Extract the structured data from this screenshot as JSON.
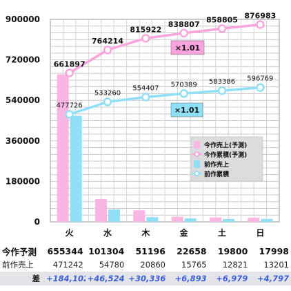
{
  "chart_data": {
    "type": "bar",
    "categories": [
      "火",
      "水",
      "木",
      "金",
      "土",
      "日"
    ],
    "yticks": [
      "900000",
      "720000",
      "540000",
      "360000",
      "180000",
      "0"
    ],
    "ylim": [
      0,
      900000
    ],
    "grid": true,
    "legend_position": "right",
    "series": [
      {
        "name": "今作売上(予測)",
        "kind": "bar",
        "color": "#f9b6e2",
        "values": [
          655344,
          101304,
          51196,
          22658,
          19800,
          17998
        ]
      },
      {
        "name": "今作累積(予測)",
        "kind": "line",
        "color": "#f9a5dc",
        "values": [
          661897,
          764214,
          815922,
          838807,
          858805,
          876983
        ],
        "labels": [
          "661897",
          "764214",
          "815922",
          "838807",
          "858805",
          "876983"
        ]
      },
      {
        "name": "前作売上",
        "kind": "bar",
        "color": "#8fe0f7",
        "values": [
          471242,
          54780,
          20860,
          15765,
          12821,
          13201
        ]
      },
      {
        "name": "前作累積",
        "kind": "line",
        "color": "#8fe0f7",
        "values": [
          477726,
          533260,
          554407,
          570389,
          583386,
          596769
        ],
        "labels": [
          "477726",
          "533260",
          "554407",
          "570389",
          "583386",
          "596769"
        ]
      }
    ],
    "annotations": [
      "×1.01",
      "×1.01"
    ]
  },
  "table": {
    "rows": [
      {
        "label": "今作予測",
        "values": [
          "655344",
          "101304",
          "51196",
          "22658",
          "19800",
          "17998"
        ]
      },
      {
        "label": "前作売上",
        "values": [
          "471242",
          "54780",
          "20860",
          "15765",
          "12821",
          "13201"
        ]
      },
      {
        "label": "差",
        "values": [
          "+184,102",
          "+46,524",
          "+30,336",
          "+6,893",
          "+6,979",
          "+4,797"
        ]
      }
    ]
  },
  "colors": {
    "pink": "#f9b6e2",
    "cyan": "#8fe0f7",
    "pink_box": "#f8a3dd",
    "cyan_box": "#8fe0f7",
    "diff_text": "#3b5fd9"
  }
}
